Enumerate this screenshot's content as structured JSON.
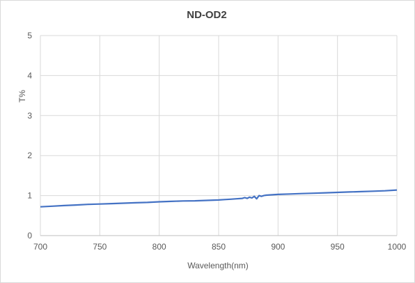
{
  "chart_data": {
    "type": "line",
    "title": "ND-OD2",
    "xlabel": "Wavelength(nm)",
    "ylabel": "T%",
    "xlim": [
      700,
      1000
    ],
    "ylim": [
      0,
      5
    ],
    "xticks": [
      700,
      750,
      800,
      850,
      900,
      950,
      1000
    ],
    "yticks": [
      0,
      1,
      2,
      3,
      4,
      5
    ],
    "grid": true,
    "legend": "none",
    "series": [
      {
        "color": "#4472c4",
        "x": [
          700,
          710,
          720,
          730,
          740,
          750,
          760,
          770,
          780,
          790,
          800,
          810,
          820,
          830,
          840,
          850,
          855,
          860,
          865,
          870,
          872,
          874,
          876,
          878,
          880,
          882,
          884,
          886,
          888,
          890,
          900,
          910,
          920,
          930,
          940,
          950,
          960,
          970,
          980,
          990,
          1000
        ],
        "y": [
          0.72,
          0.735,
          0.75,
          0.765,
          0.78,
          0.79,
          0.8,
          0.81,
          0.82,
          0.83,
          0.845,
          0.855,
          0.865,
          0.87,
          0.88,
          0.89,
          0.9,
          0.91,
          0.92,
          0.93,
          0.95,
          0.93,
          0.96,
          0.94,
          0.98,
          0.92,
          1.0,
          0.98,
          1.0,
          1.01,
          1.03,
          1.04,
          1.05,
          1.06,
          1.07,
          1.08,
          1.09,
          1.1,
          1.11,
          1.12,
          1.14
        ]
      }
    ]
  }
}
